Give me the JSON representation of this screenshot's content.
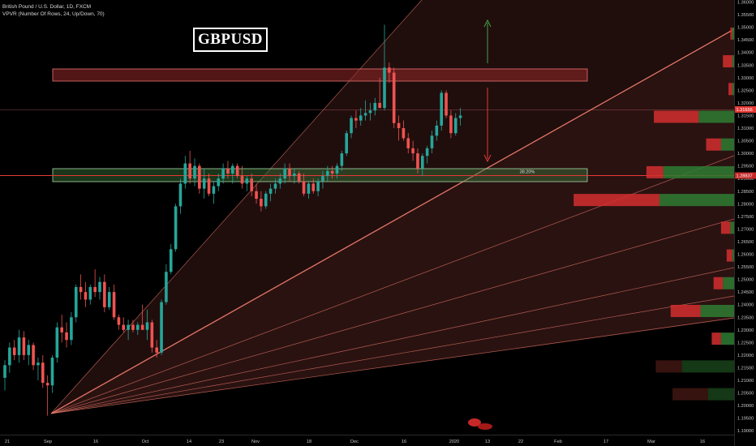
{
  "header": {
    "symbol_line": "British Pound / U.S. Dollar, 1D, FXCM",
    "indicator_line": "VPVR (Number Of Rows, 24, Up/Down, 70)"
  },
  "badge": "GBPUSD",
  "colors": {
    "up": "#26a69a",
    "down": "#ef5350",
    "accent": "#f07c6c",
    "zone_red": "#c0392b",
    "zone_green": "#2e7d32"
  },
  "chart_data": {
    "type": "candlestick",
    "y_ticks": [
      "1.36000",
      "1.35500",
      "1.35000",
      "1.34500",
      "1.34000",
      "1.33500",
      "1.33000",
      "1.32500",
      "1.32000",
      "1.31500",
      "1.31000",
      "1.30500",
      "1.30000",
      "1.29500",
      "1.29000",
      "1.28500",
      "1.28000",
      "1.27500",
      "1.27000",
      "1.26500",
      "1.26000",
      "1.25500",
      "1.25000",
      "1.24500",
      "1.24000",
      "1.23500",
      "1.23000",
      "1.22500",
      "1.22000",
      "1.21500",
      "1.21000",
      "1.20500",
      "1.20000",
      "1.19500",
      "1.19000"
    ],
    "ylim": [
      1.19,
      1.36
    ],
    "x_ticks": [
      "21",
      "Sep",
      "16",
      "Oct",
      "14",
      "23",
      "Nov",
      "18",
      "Dec",
      "16",
      "2020",
      "13",
      "22",
      "Feb",
      "17",
      "Mar",
      "16"
    ],
    "price_label": "1.31656",
    "support_label": "1.28837",
    "fib_label": "38.20%",
    "candles": [
      {
        "o": 1.211,
        "h": 1.218,
        "l": 1.206,
        "c": 1.216
      },
      {
        "o": 1.216,
        "h": 1.225,
        "l": 1.213,
        "c": 1.223
      },
      {
        "o": 1.223,
        "h": 1.226,
        "l": 1.218,
        "c": 1.22
      },
      {
        "o": 1.22,
        "h": 1.23,
        "l": 1.217,
        "c": 1.227
      },
      {
        "o": 1.227,
        "h": 1.2295,
        "l": 1.218,
        "c": 1.22
      },
      {
        "o": 1.22,
        "h": 1.226,
        "l": 1.216,
        "c": 1.224
      },
      {
        "o": 1.224,
        "h": 1.225,
        "l": 1.214,
        "c": 1.216
      },
      {
        "o": 1.216,
        "h": 1.219,
        "l": 1.21,
        "c": 1.217
      },
      {
        "o": 1.217,
        "h": 1.22,
        "l": 1.207,
        "c": 1.209
      },
      {
        "o": 1.209,
        "h": 1.212,
        "l": 1.196,
        "c": 1.208
      },
      {
        "o": 1.208,
        "h": 1.22,
        "l": 1.205,
        "c": 1.219
      },
      {
        "o": 1.219,
        "h": 1.233,
        "l": 1.217,
        "c": 1.231
      },
      {
        "o": 1.231,
        "h": 1.236,
        "l": 1.225,
        "c": 1.229
      },
      {
        "o": 1.229,
        "h": 1.233,
        "l": 1.223,
        "c": 1.226
      },
      {
        "o": 1.226,
        "h": 1.237,
        "l": 1.224,
        "c": 1.235
      },
      {
        "o": 1.235,
        "h": 1.248,
        "l": 1.233,
        "c": 1.247
      },
      {
        "o": 1.247,
        "h": 1.252,
        "l": 1.242,
        "c": 1.245
      },
      {
        "o": 1.245,
        "h": 1.249,
        "l": 1.239,
        "c": 1.242
      },
      {
        "o": 1.242,
        "h": 1.248,
        "l": 1.24,
        "c": 1.247
      },
      {
        "o": 1.247,
        "h": 1.254,
        "l": 1.243,
        "c": 1.245
      },
      {
        "o": 1.245,
        "h": 1.251,
        "l": 1.242,
        "c": 1.249
      },
      {
        "o": 1.249,
        "h": 1.252,
        "l": 1.237,
        "c": 1.239
      },
      {
        "o": 1.239,
        "h": 1.247,
        "l": 1.238,
        "c": 1.245
      },
      {
        "o": 1.245,
        "h": 1.248,
        "l": 1.234,
        "c": 1.235
      },
      {
        "o": 1.235,
        "h": 1.236,
        "l": 1.23,
        "c": 1.232
      },
      {
        "o": 1.232,
        "h": 1.235,
        "l": 1.229,
        "c": 1.23
      },
      {
        "o": 1.23,
        "h": 1.234,
        "l": 1.226,
        "c": 1.232
      },
      {
        "o": 1.232,
        "h": 1.234,
        "l": 1.229,
        "c": 1.23
      },
      {
        "o": 1.23,
        "h": 1.233,
        "l": 1.228,
        "c": 1.232
      },
      {
        "o": 1.232,
        "h": 1.24,
        "l": 1.23,
        "c": 1.23
      },
      {
        "o": 1.23,
        "h": 1.238,
        "l": 1.226,
        "c": 1.233
      },
      {
        "o": 1.233,
        "h": 1.234,
        "l": 1.221,
        "c": 1.223
      },
      {
        "o": 1.223,
        "h": 1.226,
        "l": 1.219,
        "c": 1.221
      },
      {
        "o": 1.221,
        "h": 1.242,
        "l": 1.22,
        "c": 1.241
      },
      {
        "o": 1.241,
        "h": 1.256,
        "l": 1.24,
        "c": 1.253
      },
      {
        "o": 1.253,
        "h": 1.264,
        "l": 1.252,
        "c": 1.262
      },
      {
        "o": 1.262,
        "h": 1.28,
        "l": 1.261,
        "c": 1.279
      },
      {
        "o": 1.279,
        "h": 1.29,
        "l": 1.276,
        "c": 1.288
      },
      {
        "o": 1.288,
        "h": 1.299,
        "l": 1.286,
        "c": 1.296
      },
      {
        "o": 1.296,
        "h": 1.301,
        "l": 1.288,
        "c": 1.29
      },
      {
        "o": 1.29,
        "h": 1.298,
        "l": 1.287,
        "c": 1.295
      },
      {
        "o": 1.295,
        "h": 1.296,
        "l": 1.284,
        "c": 1.286
      },
      {
        "o": 1.286,
        "h": 1.294,
        "l": 1.282,
        "c": 1.29
      },
      {
        "o": 1.29,
        "h": 1.292,
        "l": 1.283,
        "c": 1.284
      },
      {
        "o": 1.284,
        "h": 1.289,
        "l": 1.28,
        "c": 1.287
      },
      {
        "o": 1.287,
        "h": 1.292,
        "l": 1.285,
        "c": 1.29
      },
      {
        "o": 1.29,
        "h": 1.296,
        "l": 1.288,
        "c": 1.294
      },
      {
        "o": 1.294,
        "h": 1.297,
        "l": 1.29,
        "c": 1.292
      },
      {
        "o": 1.292,
        "h": 1.296,
        "l": 1.288,
        "c": 1.295
      },
      {
        "o": 1.295,
        "h": 1.296,
        "l": 1.29,
        "c": 1.291
      },
      {
        "o": 1.291,
        "h": 1.295,
        "l": 1.286,
        "c": 1.288
      },
      {
        "o": 1.288,
        "h": 1.291,
        "l": 1.285,
        "c": 1.29
      },
      {
        "o": 1.29,
        "h": 1.292,
        "l": 1.283,
        "c": 1.285
      },
      {
        "o": 1.285,
        "h": 1.288,
        "l": 1.28,
        "c": 1.282
      },
      {
        "o": 1.282,
        "h": 1.285,
        "l": 1.277,
        "c": 1.279
      },
      {
        "o": 1.279,
        "h": 1.285,
        "l": 1.278,
        "c": 1.284
      },
      {
        "o": 1.284,
        "h": 1.288,
        "l": 1.281,
        "c": 1.286
      },
      {
        "o": 1.286,
        "h": 1.29,
        "l": 1.284,
        "c": 1.288
      },
      {
        "o": 1.288,
        "h": 1.292,
        "l": 1.286,
        "c": 1.29
      },
      {
        "o": 1.29,
        "h": 1.296,
        "l": 1.288,
        "c": 1.294
      },
      {
        "o": 1.294,
        "h": 1.296,
        "l": 1.289,
        "c": 1.291
      },
      {
        "o": 1.291,
        "h": 1.294,
        "l": 1.288,
        "c": 1.292
      },
      {
        "o": 1.292,
        "h": 1.293,
        "l": 1.288,
        "c": 1.289
      },
      {
        "o": 1.289,
        "h": 1.292,
        "l": 1.283,
        "c": 1.284
      },
      {
        "o": 1.284,
        "h": 1.289,
        "l": 1.282,
        "c": 1.288
      },
      {
        "o": 1.288,
        "h": 1.29,
        "l": 1.284,
        "c": 1.285
      },
      {
        "o": 1.285,
        "h": 1.29,
        "l": 1.283,
        "c": 1.289
      },
      {
        "o": 1.289,
        "h": 1.293,
        "l": 1.286,
        "c": 1.291
      },
      {
        "o": 1.291,
        "h": 1.295,
        "l": 1.289,
        "c": 1.293
      },
      {
        "o": 1.293,
        "h": 1.295,
        "l": 1.29,
        "c": 1.292
      },
      {
        "o": 1.292,
        "h": 1.296,
        "l": 1.29,
        "c": 1.295
      },
      {
        "o": 1.295,
        "h": 1.301,
        "l": 1.293,
        "c": 1.3
      },
      {
        "o": 1.3,
        "h": 1.309,
        "l": 1.299,
        "c": 1.308
      },
      {
        "o": 1.308,
        "h": 1.315,
        "l": 1.306,
        "c": 1.314
      },
      {
        "o": 1.314,
        "h": 1.317,
        "l": 1.31,
        "c": 1.313
      },
      {
        "o": 1.313,
        "h": 1.318,
        "l": 1.311,
        "c": 1.315
      },
      {
        "o": 1.315,
        "h": 1.321,
        "l": 1.313,
        "c": 1.316
      },
      {
        "o": 1.316,
        "h": 1.32,
        "l": 1.313,
        "c": 1.317
      },
      {
        "o": 1.317,
        "h": 1.322,
        "l": 1.315,
        "c": 1.32
      },
      {
        "o": 1.32,
        "h": 1.33,
        "l": 1.318,
        "c": 1.318
      },
      {
        "o": 1.318,
        "h": 1.351,
        "l": 1.317,
        "c": 1.334
      },
      {
        "o": 1.334,
        "h": 1.336,
        "l": 1.328,
        "c": 1.332
      },
      {
        "o": 1.332,
        "h": 1.334,
        "l": 1.31,
        "c": 1.312
      },
      {
        "o": 1.312,
        "h": 1.315,
        "l": 1.305,
        "c": 1.31
      },
      {
        "o": 1.31,
        "h": 1.313,
        "l": 1.305,
        "c": 1.306
      },
      {
        "o": 1.306,
        "h": 1.308,
        "l": 1.3,
        "c": 1.302
      },
      {
        "o": 1.302,
        "h": 1.305,
        "l": 1.297,
        "c": 1.3
      },
      {
        "o": 1.3,
        "h": 1.302,
        "l": 1.292,
        "c": 1.294
      },
      {
        "o": 1.294,
        "h": 1.3,
        "l": 1.291,
        "c": 1.299
      },
      {
        "o": 1.299,
        "h": 1.303,
        "l": 1.296,
        "c": 1.302
      },
      {
        "o": 1.302,
        "h": 1.309,
        "l": 1.3,
        "c": 1.307
      },
      {
        "o": 1.307,
        "h": 1.313,
        "l": 1.305,
        "c": 1.311
      },
      {
        "o": 1.311,
        "h": 1.325,
        "l": 1.309,
        "c": 1.324
      },
      {
        "o": 1.324,
        "h": 1.325,
        "l": 1.314,
        "c": 1.315
      },
      {
        "o": 1.315,
        "h": 1.317,
        "l": 1.306,
        "c": 1.308
      },
      {
        "o": 1.308,
        "h": 1.316,
        "l": 1.307,
        "c": 1.314
      },
      {
        "o": 1.314,
        "h": 1.318,
        "l": 1.311,
        "c": 1.315
      }
    ],
    "volume_profile": [
      {
        "price": 1.3475,
        "up": 0.01,
        "down": 0.01,
        "dim": false
      },
      {
        "price": 1.3365,
        "up": 0.01,
        "down": 0.05,
        "dim": false
      },
      {
        "price": 1.3255,
        "up": 0.01,
        "down": 0.02,
        "dim": false
      },
      {
        "price": 1.3145,
        "up": 0.19,
        "down": 0.24,
        "dim": false
      },
      {
        "price": 1.3035,
        "up": 0.07,
        "down": 0.08,
        "dim": false
      },
      {
        "price": 1.2925,
        "up": 0.38,
        "down": 0.09,
        "dim": false
      },
      {
        "price": 1.2815,
        "up": 0.4,
        "down": 0.46,
        "dim": false
      },
      {
        "price": 1.2705,
        "up": 0.02,
        "down": 0.05,
        "dim": false
      },
      {
        "price": 1.2595,
        "up": 0.01,
        "down": 0.03,
        "dim": false
      },
      {
        "price": 1.2485,
        "up": 0.06,
        "down": 0.05,
        "dim": false
      },
      {
        "price": 1.2375,
        "up": 0.18,
        "down": 0.16,
        "dim": false
      },
      {
        "price": 1.2265,
        "up": 0.07,
        "down": 0.05,
        "dim": false
      },
      {
        "price": 1.2155,
        "up": 0.28,
        "down": 0.14,
        "dim": true
      },
      {
        "price": 1.2045,
        "up": 0.14,
        "down": 0.19,
        "dim": true
      }
    ],
    "grid": false,
    "legend": "none"
  }
}
